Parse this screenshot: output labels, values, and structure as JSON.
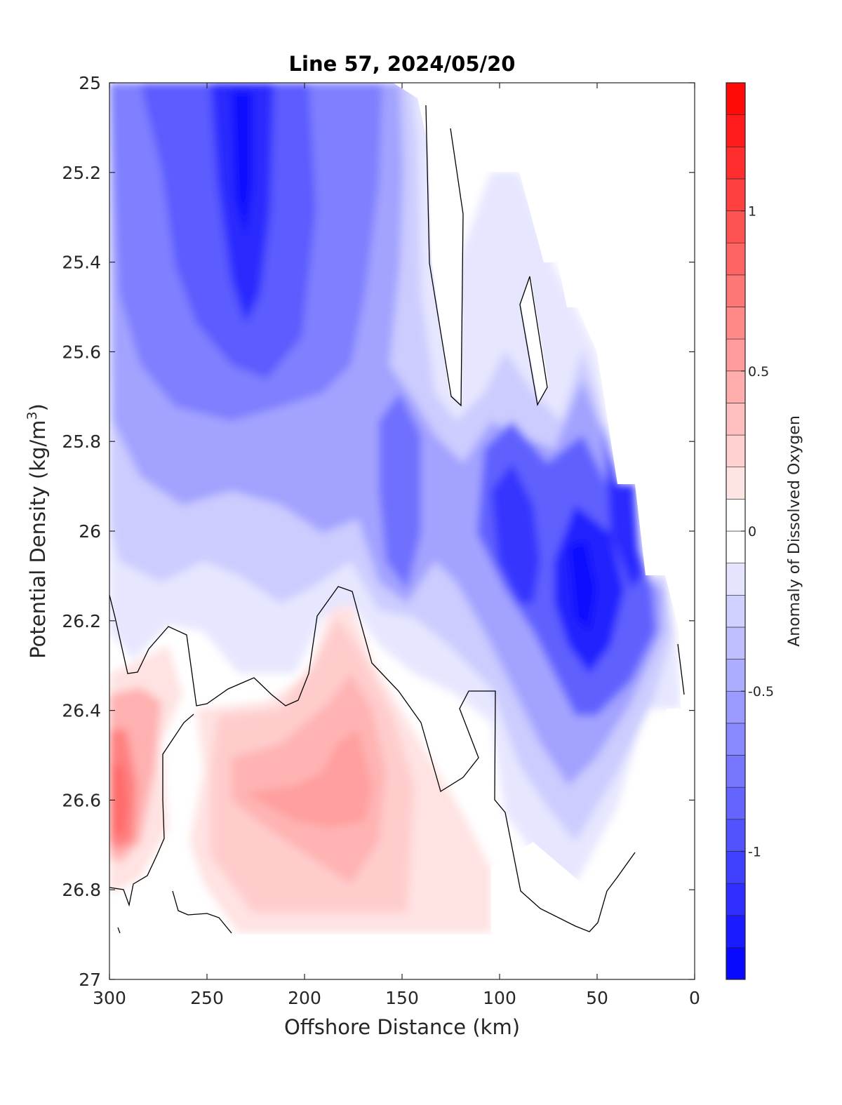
{
  "chart_data": {
    "type": "contour",
    "title": "Line 57, 2024/05/20",
    "xlabel": "Offshore Distance (km)",
    "ylabel_main": "Potential Density (kg/m",
    "ylabel_sup": "3",
    "ylabel_close": ")",
    "colorbar_label": "Anomaly of Dissolved Oxygen",
    "xlim": [
      300,
      0
    ],
    "ylim": [
      25,
      27
    ],
    "x_ticks": [
      "300",
      "250",
      "200",
      "150",
      "100",
      "50",
      "0"
    ],
    "x_tick_values": [
      300,
      250,
      200,
      150,
      100,
      50,
      0
    ],
    "y_ticks": [
      "25",
      "25.2",
      "25.4",
      "25.6",
      "25.8",
      "26",
      "26.2",
      "26.4",
      "26.6",
      "26.8",
      "27"
    ],
    "y_tick_values": [
      25,
      25.2,
      25.4,
      25.6,
      25.8,
      26,
      26.2,
      26.4,
      26.6,
      26.8,
      27
    ],
    "colorbar_range": [
      -1.4,
      1.4
    ],
    "colorbar_step": 0.1,
    "colorbar_ticks": [
      "1",
      "0.5",
      "0",
      "-0.5",
      "-1"
    ],
    "colorbar_tick_values": [
      1,
      0.5,
      0,
      -0.5,
      -1
    ],
    "colors": {
      "negative": "#0000ff",
      "positive": "#ff0000",
      "neutral": "#ffffff",
      "zero_contour": "#000000"
    },
    "data_coverage_shallow_limit": [
      [
        300,
        25.0
      ],
      [
        150,
        25.0
      ],
      [
        140,
        25.05
      ],
      [
        110,
        25.2
      ],
      [
        90,
        25.2
      ],
      [
        80,
        25.35
      ],
      [
        75,
        25.4
      ],
      [
        65,
        25.5
      ],
      [
        55,
        25.6
      ],
      [
        50,
        25.75
      ],
      [
        45,
        25.9
      ],
      [
        30,
        26.05
      ],
      [
        22,
        26.1
      ],
      [
        15,
        26.1
      ],
      [
        10,
        26.3
      ],
      [
        5,
        26.4
      ]
    ],
    "data_coverage_deep_limit": [
      [
        300,
        26.9
      ],
      [
        105,
        26.9
      ],
      [
        105,
        26.75
      ],
      [
        60,
        26.75
      ],
      [
        30,
        26.6
      ],
      [
        20,
        26.4
      ]
    ],
    "features": [
      {
        "label": "low anomaly core",
        "x": 230,
        "y": 25.25,
        "value": -1.2
      },
      {
        "label": "low anomaly core",
        "x": 60,
        "y": 26.1,
        "value": -1.3
      },
      {
        "label": "low anomaly core",
        "x": 95,
        "y": 26.0,
        "value": -1.0
      },
      {
        "label": "high anomaly",
        "x": 295,
        "y": 26.6,
        "value": 0.6
      },
      {
        "label": "high anomaly",
        "x": 205,
        "y": 26.6,
        "value": 0.4
      },
      {
        "label": "high anomaly",
        "x": 170,
        "y": 26.5,
        "value": 0.4
      },
      {
        "label": "neutral band",
        "x": 125,
        "y": 25.4,
        "value": 0.0
      }
    ]
  }
}
